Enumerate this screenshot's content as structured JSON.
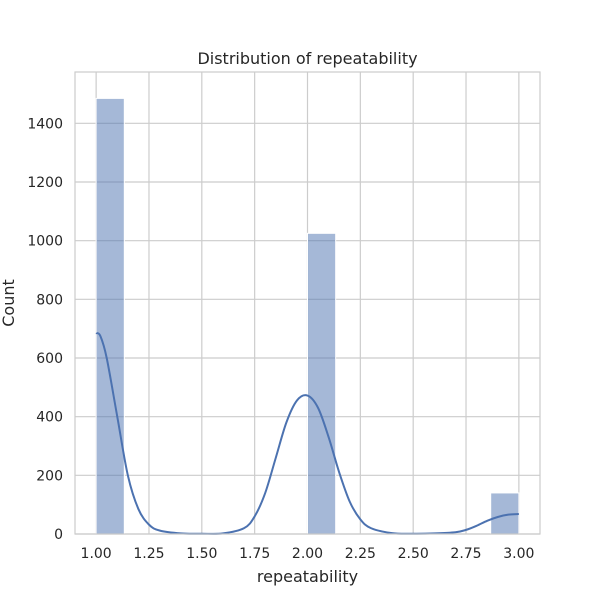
{
  "chart_data": {
    "type": "bar",
    "title": "Distribution of repeatability",
    "xlabel": "repeatability",
    "ylabel": "Count",
    "xlim": [
      0.9,
      3.1
    ],
    "ylim": [
      0,
      1575
    ],
    "grid": true,
    "x_ticks": [
      1.0,
      1.25,
      1.5,
      1.75,
      2.0,
      2.25,
      2.5,
      2.75,
      3.0
    ],
    "x_tick_labels": [
      "1.00",
      "1.25",
      "1.50",
      "1.75",
      "2.00",
      "2.25",
      "2.50",
      "2.75",
      "3.00"
    ],
    "y_ticks": [
      0,
      200,
      400,
      600,
      800,
      1000,
      1200,
      1400
    ],
    "y_tick_labels": [
      "0",
      "200",
      "400",
      "600",
      "800",
      "1000",
      "1200",
      "1400"
    ],
    "bin_width": 0.1333,
    "bars": [
      {
        "x0": 1.0,
        "x1": 1.1333,
        "count": 1485
      },
      {
        "x0": 2.0,
        "x1": 2.1333,
        "count": 1025
      },
      {
        "x0": 2.8667,
        "x1": 3.0,
        "count": 140
      }
    ],
    "kde": {
      "x": [
        1.0,
        1.02,
        1.05,
        1.1,
        1.15,
        1.2,
        1.25,
        1.3,
        1.4,
        1.5,
        1.6,
        1.7,
        1.75,
        1.8,
        1.85,
        1.9,
        1.95,
        2.0,
        2.05,
        2.1,
        2.15,
        2.2,
        2.25,
        2.3,
        2.4,
        2.5,
        2.6,
        2.7,
        2.75,
        2.8,
        2.85,
        2.9,
        2.95,
        3.0
      ],
      "y": [
        685,
        675,
        600,
        400,
        200,
        85,
        32,
        12,
        2,
        1,
        2,
        20,
        60,
        140,
        260,
        380,
        455,
        472,
        430,
        330,
        210,
        110,
        50,
        20,
        3,
        1,
        2,
        6,
        14,
        28,
        45,
        58,
        66,
        68
      ]
    },
    "colors": {
      "bar_fill": "#4c72b0",
      "bar_opacity": 0.5,
      "kde_line": "#4c72b0",
      "grid": "#cccccc",
      "spine": "#cccccc",
      "text": "#262626"
    }
  }
}
